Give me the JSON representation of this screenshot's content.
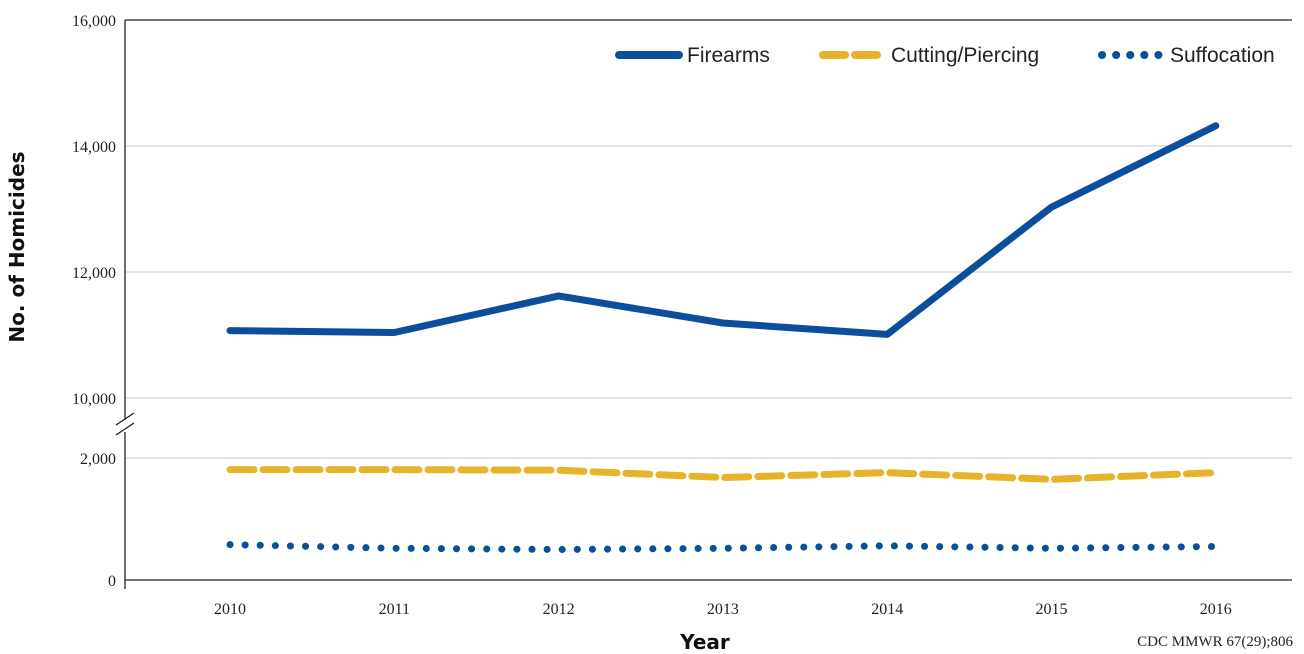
{
  "chart_data": {
    "type": "line",
    "x": [
      2010,
      2011,
      2012,
      2013,
      2014,
      2015,
      2016
    ],
    "xlabel": "Year",
    "ylabel": "No. of Homicides",
    "y_ticks": [
      "0",
      "2,000",
      "10,000",
      "12,000",
      "14,000",
      "16,000"
    ],
    "axis_break": {
      "from": 2000,
      "to": 10000
    },
    "ylim": [
      0,
      16000
    ],
    "grid": true,
    "legend_position": "top-right",
    "series": [
      {
        "name": "Firearms",
        "style": "solid",
        "color": "#0b4f9c",
        "values": [
          11070,
          11040,
          11620,
          11190,
          11010,
          13030,
          14320
        ]
      },
      {
        "name": "Cutting/Piercing",
        "style": "dashed",
        "color": "#e8b32a",
        "values": [
          1810,
          1810,
          1800,
          1680,
          1760,
          1650,
          1760
        ]
      },
      {
        "name": "Suffocation",
        "style": "dotted",
        "color": "#0b4f9c",
        "values": [
          580,
          520,
          500,
          520,
          560,
          520,
          550
        ]
      }
    ],
    "source": "CDC MMWR 67(29);806"
  }
}
